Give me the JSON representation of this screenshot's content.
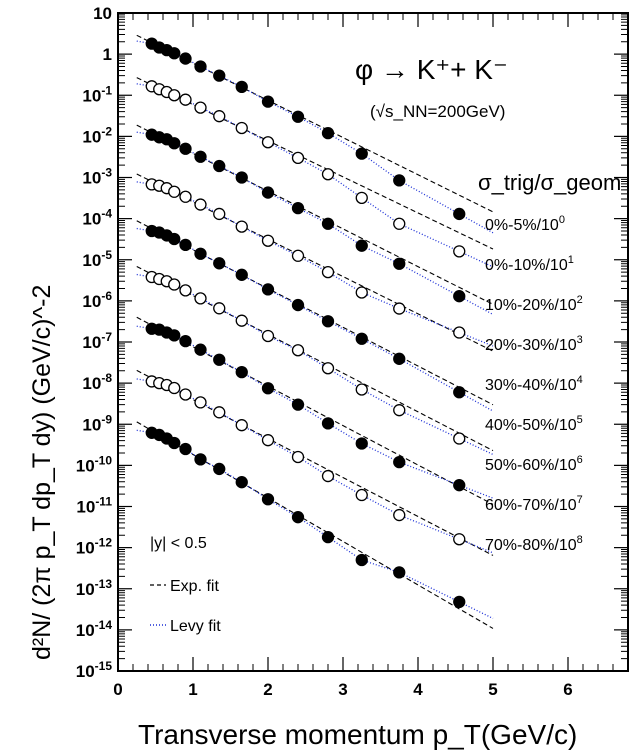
{
  "chart_data": {
    "type": "scatter",
    "title": "",
    "xlabel": "Transverse momentum p_T(GeV/c)",
    "ylabel": "d²N/ (2π p_T dp_T dy) (GeV/c)^-2",
    "xlim": [
      0,
      6.8
    ],
    "ylim": [
      1e-15,
      10
    ],
    "y_scale": "log",
    "x_ticks": [
      "0",
      "1",
      "2",
      "3",
      "4",
      "5",
      "6"
    ],
    "y_tick_exponents": [
      1,
      0,
      -1,
      -2,
      -3,
      -4,
      -5,
      -6,
      -7,
      -8,
      -9,
      -10,
      -11,
      -12,
      -13,
      -14,
      -15
    ],
    "y_tick_labels": [
      "10",
      "1",
      "10^-1",
      "10^-2",
      "10^-3",
      "10^-4",
      "10^-5",
      "10^-6",
      "10^-7",
      "10^-8",
      "10^-9",
      "10^-10",
      "10^-11",
      "10^-12",
      "10^-13",
      "10^-14",
      "10^-15"
    ],
    "reaction": "φ → K⁺+ K⁻",
    "energy": "(√s_NN=200GeV)",
    "centrality_header": "σ_trig/σ_geom",
    "rapidity_cut": "|y| < 0.5",
    "fit_legend": [
      {
        "label": "Exp. fit",
        "style": "dashed"
      },
      {
        "label": "Levy fit",
        "style": "dotted"
      }
    ],
    "x": [
      0.45,
      0.55,
      0.65,
      0.75,
      0.9,
      1.1,
      1.35,
      1.65,
      2.0,
      2.4,
      2.8,
      3.25,
      3.75,
      4.55
    ],
    "series": [
      {
        "name": "0%-5%/10^0",
        "marker": "filled",
        "values": [
          1.8,
          1.45,
          1.25,
          1.05,
          0.78,
          0.5,
          0.3,
          0.16,
          0.07,
          0.03,
          0.012,
          0.0038,
          0.00085,
          0.00013
        ]
      },
      {
        "name": "0%-10%/10^1",
        "marker": "open",
        "values": [
          0.165,
          0.14,
          0.12,
          0.1,
          0.078,
          0.05,
          0.031,
          0.016,
          0.0072,
          0.003,
          0.0012,
          0.00032,
          7.5e-05,
          1.6e-05
        ]
      },
      {
        "name": "10%-20%/10^2",
        "marker": "filled",
        "values": [
          0.011,
          0.0095,
          0.0085,
          0.0068,
          0.005,
          0.0032,
          0.0019,
          0.001,
          0.00043,
          0.00018,
          7.5e-05,
          2.2e-05,
          8e-06,
          1.3e-06
        ]
      },
      {
        "name": "20%-30%/10^3",
        "marker": "open",
        "values": [
          0.00068,
          0.00063,
          0.00055,
          0.00045,
          0.00034,
          0.00022,
          0.00013,
          6.4e-05,
          2.9e-05,
          1.25e-05,
          5e-06,
          1.6e-06,
          6.5e-07,
          1.7e-07
        ]
      },
      {
        "name": "30%-40%/10^4",
        "marker": "filled",
        "values": [
          5e-05,
          4.6e-05,
          3.9e-05,
          3.2e-05,
          2.3e-05,
          1.4e-05,
          8.2e-06,
          4.3e-06,
          1.9e-06,
          7.9e-07,
          3.2e-07,
          1.2e-07,
          3.9e-08,
          6e-09
        ]
      },
      {
        "name": "40%-50%/10^5",
        "marker": "open",
        "values": [
          3.8e-06,
          3.4e-06,
          3e-06,
          2.5e-06,
          1.8e-06,
          1.15e-06,
          6.6e-07,
          3.3e-07,
          1.4e-07,
          6.3e-08,
          2.3e-08,
          7e-09,
          2.2e-09,
          4.5e-10
        ]
      },
      {
        "name": "50%-60%/10^6",
        "marker": "filled",
        "values": [
          2.1e-07,
          2e-07,
          1.7e-07,
          1.45e-07,
          1.05e-07,
          6.5e-08,
          3.7e-08,
          1.85e-08,
          7.5e-09,
          3e-09,
          1.05e-09,
          3.4e-10,
          1.2e-10,
          3.3e-11
        ]
      },
      {
        "name": "60%-70%/10^7",
        "marker": "open",
        "values": [
          1.1e-08,
          1e-08,
          9e-09,
          7.6e-09,
          5.3e-09,
          3.4e-09,
          1.95e-09,
          9.5e-10,
          4.1e-10,
          1.6e-10,
          5.5e-11,
          1.9e-11,
          6.2e-12,
          1.6e-12
        ]
      },
      {
        "name": "70%-80%/10^8",
        "marker": "filled",
        "values": [
          6.2e-10,
          5.5e-10,
          4.5e-10,
          3.5e-10,
          2.5e-10,
          1.4e-10,
          8.2e-11,
          3.9e-11,
          1.5e-11,
          5.5e-12,
          1.8e-12,
          5e-13,
          2.5e-13,
          4.8e-14
        ]
      }
    ]
  }
}
